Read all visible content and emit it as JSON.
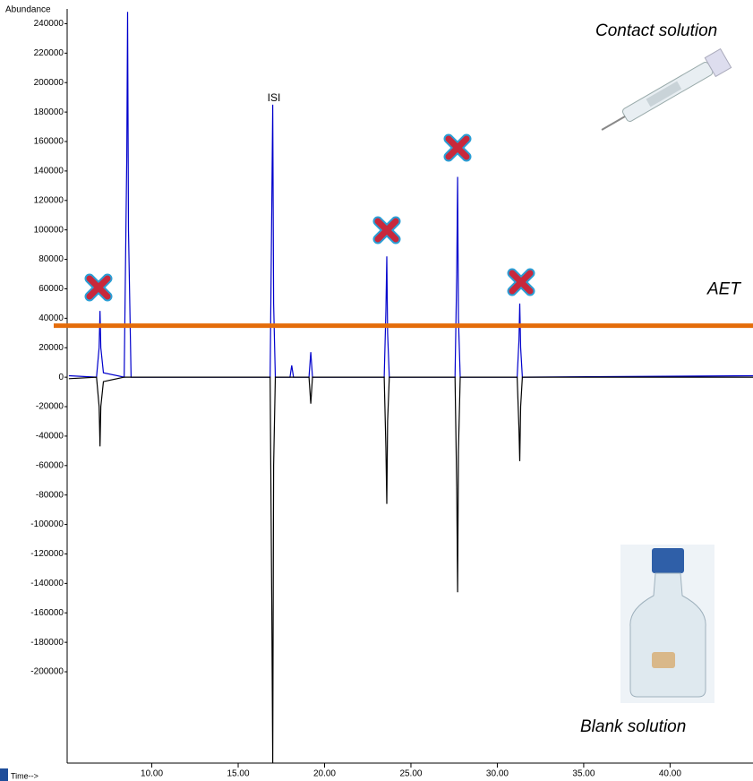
{
  "chart_data": {
    "type": "line",
    "y_axis_label": "Abundance",
    "x_axis_label": "Time-->",
    "annotations": {
      "isi": "ISI",
      "contact": "Contact solution",
      "blank": "Blank solution"
    },
    "threshold": {
      "label": "AET",
      "value": 35000,
      "color": "#e46c0a"
    },
    "x": [
      5.2,
      6.8,
      6.95,
      7.0,
      7.05,
      7.2,
      8.4,
      8.55,
      8.6,
      8.65,
      8.8,
      14.0,
      16.85,
      16.95,
      17.0,
      17.05,
      17.15,
      18.0,
      18.1,
      18.2,
      19.1,
      19.2,
      19.3,
      23.45,
      23.55,
      23.6,
      23.65,
      23.75,
      27.55,
      27.65,
      27.7,
      27.75,
      27.85,
      31.15,
      31.25,
      31.3,
      31.35,
      31.45,
      44.8
    ],
    "series": [
      {
        "name": "Contact solution",
        "color": "#0000cc",
        "values": [
          1000,
          0,
          20000,
          45000,
          20000,
          3000,
          0,
          150000,
          248000,
          100000,
          0,
          0,
          0,
          120000,
          185000,
          50000,
          0,
          0,
          8000,
          0,
          0,
          17000,
          0,
          0,
          45000,
          82000,
          30000,
          0,
          0,
          70000,
          136000,
          40000,
          0,
          0,
          25000,
          50000,
          20000,
          0,
          1000
        ]
      },
      {
        "name": "Blank solution",
        "color": "#000000",
        "values": [
          -1000,
          0,
          -20000,
          -47000,
          -20000,
          -3000,
          0,
          0,
          0,
          0,
          0,
          0,
          0,
          -160000,
          -262000,
          -60000,
          0,
          0,
          0,
          0,
          0,
          -18000,
          0,
          0,
          -48000,
          -86000,
          -30000,
          0,
          0,
          -75000,
          -146000,
          -50000,
          0,
          0,
          -35000,
          -57000,
          -20000,
          0,
          0
        ]
      }
    ],
    "xlim": [
      5.1,
      44.8
    ],
    "ylim": [
      -262000,
      250000
    ],
    "xticks": [
      {
        "value": 10,
        "label": "10.00"
      },
      {
        "value": 15,
        "label": "15.00"
      },
      {
        "value": 20,
        "label": "20.00"
      },
      {
        "value": 25,
        "label": "25.00"
      },
      {
        "value": 30,
        "label": "30.00"
      },
      {
        "value": 35,
        "label": "35.00"
      },
      {
        "value": 40,
        "label": "40.00"
      }
    ],
    "yticks": [
      -200000,
      -180000,
      -160000,
      -140000,
      -120000,
      -100000,
      -80000,
      -60000,
      -40000,
      -20000,
      0,
      20000,
      40000,
      60000,
      80000,
      100000,
      120000,
      140000,
      160000,
      180000,
      200000,
      220000,
      240000
    ]
  }
}
